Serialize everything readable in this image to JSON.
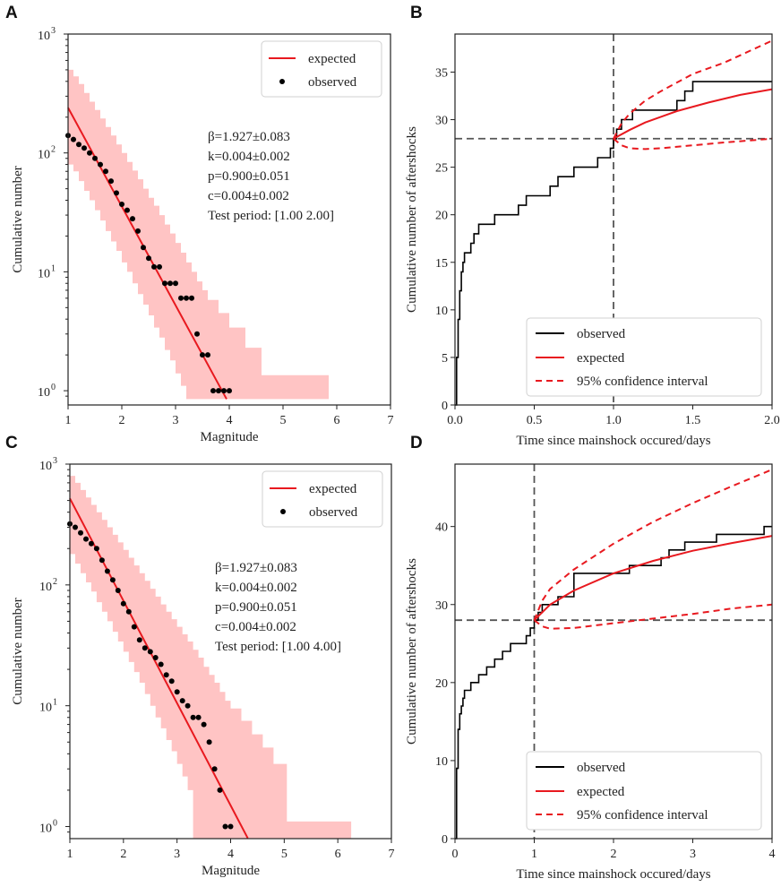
{
  "figure": {
    "panels": [
      "A",
      "B",
      "C",
      "D"
    ]
  },
  "chart_data": [
    {
      "id": "A",
      "type": "scatter",
      "yscale": "log",
      "xlabel": "Magnitude",
      "ylabel": "Cumulative number",
      "xlim": [
        1,
        7
      ],
      "ylim_log10": [
        -0.12,
        3
      ],
      "xticks": [
        "1",
        "2",
        "3",
        "4",
        "5",
        "6",
        "7"
      ],
      "yticks": [
        "10",
        "10",
        "10",
        "10"
      ],
      "ytick_exponents": [
        "0",
        "1",
        "2",
        "3"
      ],
      "legend": [
        "expected",
        "observed"
      ],
      "legend_position": "top-right",
      "expected_line": {
        "x": [
          1.0,
          3.95
        ],
        "y": [
          240,
          0.85
        ]
      },
      "confidence_band": {
        "steps": [
          [
            1.0,
            80,
            500
          ],
          [
            1.1,
            70,
            440
          ],
          [
            1.2,
            58,
            380
          ],
          [
            1.3,
            48,
            320
          ],
          [
            1.4,
            40,
            270
          ],
          [
            1.5,
            33,
            230
          ],
          [
            1.6,
            27,
            195
          ],
          [
            1.7,
            22,
            165
          ],
          [
            1.8,
            18,
            140
          ],
          [
            1.9,
            15,
            118
          ],
          [
            2.0,
            12,
            100
          ],
          [
            2.1,
            10,
            84
          ],
          [
            2.2,
            8,
            71
          ],
          [
            2.3,
            6.5,
            60
          ],
          [
            2.4,
            5.3,
            50
          ],
          [
            2.5,
            4.3,
            42
          ],
          [
            2.6,
            3.4,
            36
          ],
          [
            2.7,
            2.8,
            30
          ],
          [
            2.8,
            2.2,
            25
          ],
          [
            2.9,
            1.8,
            21
          ],
          [
            3.0,
            1.4,
            17.5
          ],
          [
            3.1,
            1.1,
            14.5
          ],
          [
            3.2,
            0.85,
            12
          ],
          [
            3.3,
            0.85,
            10
          ],
          [
            3.4,
            0.85,
            8.3
          ],
          [
            3.5,
            0.85,
            7
          ],
          [
            3.6,
            0.85,
            5.8
          ],
          [
            3.8,
            0.85,
            4.5
          ],
          [
            4.0,
            0.85,
            3.4
          ],
          [
            4.3,
            0.85,
            2.3
          ],
          [
            4.6,
            0.85,
            1.35
          ],
          [
            5.85,
            0.85,
            1.35
          ]
        ]
      },
      "observed": {
        "x": [
          1.0,
          1.1,
          1.2,
          1.3,
          1.4,
          1.5,
          1.6,
          1.7,
          1.8,
          1.9,
          2.0,
          2.1,
          2.2,
          2.3,
          2.4,
          2.5,
          2.6,
          2.7,
          2.8,
          2.9,
          3.0,
          3.1,
          3.2,
          3.3,
          3.4,
          3.5,
          3.6,
          3.7,
          3.8,
          3.9,
          4.0
        ],
        "y": [
          140,
          130,
          118,
          110,
          100,
          90,
          80,
          70,
          58,
          46,
          37,
          33,
          28,
          22,
          16,
          13,
          11,
          11,
          8,
          8,
          8,
          6,
          6,
          6,
          3,
          2,
          2,
          1,
          1,
          1,
          1
        ]
      },
      "annotations": [
        "β=1.927±0.083",
        "k=0.004±0.002",
        "p=0.900±0.051",
        "c=0.004±0.002",
        "Test period: [1.00 2.00]"
      ]
    },
    {
      "id": "B",
      "type": "line",
      "xlabel": "Time since mainshock occured/days",
      "ylabel": "Cumulative number of aftershocks",
      "xlim": [
        0,
        2
      ],
      "ylim": [
        0,
        39
      ],
      "xticks": [
        "0.0",
        "0.5",
        "1.0",
        "1.5",
        "2.0"
      ],
      "yticks": [
        "0",
        "5",
        "10",
        "15",
        "20",
        "25",
        "30",
        "35"
      ],
      "legend": [
        "observed",
        "expected",
        "95% confidence interval"
      ],
      "legend_position": "lower-right",
      "reference_lines": {
        "x": 1.0,
        "y": 28
      },
      "observed": {
        "x": [
          0,
          0.01,
          0.02,
          0.03,
          0.04,
          0.05,
          0.06,
          0.08,
          0.1,
          0.12,
          0.15,
          0.2,
          0.25,
          0.3,
          0.35,
          0.4,
          0.45,
          0.5,
          0.55,
          0.6,
          0.65,
          0.75,
          0.8,
          0.85,
          0.9,
          0.95,
          0.98,
          1.0,
          1.02,
          1.05,
          1.08,
          1.12,
          1.2,
          1.3,
          1.4,
          1.45,
          1.5,
          2.0
        ],
        "y": [
          0,
          5,
          9,
          12,
          14,
          15,
          16,
          16,
          17,
          18,
          19,
          19,
          20,
          20,
          20,
          21,
          22,
          22,
          22,
          23,
          24,
          25,
          25,
          25,
          26,
          26,
          27,
          28,
          29,
          30,
          30,
          31,
          31,
          31,
          32,
          33,
          34,
          34
        ]
      },
      "expected": {
        "x": [
          1.0,
          1.1,
          1.2,
          1.4,
          1.6,
          1.8,
          2.0
        ],
        "y": [
          28.0,
          28.9,
          29.7,
          30.9,
          31.8,
          32.6,
          33.2
        ]
      },
      "ci_upper": {
        "x": [
          1.0,
          1.05,
          1.1,
          1.2,
          1.3,
          1.5,
          1.7,
          2.0
        ],
        "y": [
          28.0,
          29.6,
          30.6,
          32.0,
          33.0,
          34.8,
          36.0,
          38.3
        ]
      },
      "ci_lower": {
        "x": [
          1.0,
          1.05,
          1.1,
          1.2,
          1.3,
          1.5,
          1.7,
          2.0
        ],
        "y": [
          28.0,
          27.3,
          27.0,
          26.9,
          27.0,
          27.3,
          27.6,
          28.0
        ]
      }
    },
    {
      "id": "C",
      "type": "scatter",
      "yscale": "log",
      "xlabel": "Magnitude",
      "ylabel": "Cumulative number",
      "xlim": [
        1,
        7
      ],
      "ylim_log10": [
        -0.1,
        3
      ],
      "xticks": [
        "1",
        "2",
        "3",
        "4",
        "5",
        "6",
        "7"
      ],
      "yticks": [
        "10",
        "10",
        "10",
        "10"
      ],
      "ytick_exponents": [
        "0",
        "1",
        "2",
        "3"
      ],
      "legend": [
        "expected",
        "observed"
      ],
      "legend_position": "top-right",
      "expected_line": {
        "x": [
          1.0,
          4.32
        ],
        "y": [
          520,
          0.8
        ]
      },
      "confidence_band": {
        "steps": [
          [
            1.0,
            180,
            800
          ],
          [
            1.1,
            150,
            700
          ],
          [
            1.2,
            125,
            610
          ],
          [
            1.3,
            105,
            530
          ],
          [
            1.4,
            88,
            460
          ],
          [
            1.5,
            72,
            400
          ],
          [
            1.6,
            60,
            345
          ],
          [
            1.7,
            50,
            300
          ],
          [
            1.8,
            41,
            260
          ],
          [
            1.9,
            34,
            225
          ],
          [
            2.0,
            28,
            195
          ],
          [
            2.1,
            23,
            168
          ],
          [
            2.2,
            19,
            145
          ],
          [
            2.3,
            15.5,
            125
          ],
          [
            2.4,
            12.5,
            108
          ],
          [
            2.5,
            10,
            93
          ],
          [
            2.6,
            8,
            80
          ],
          [
            2.7,
            6.5,
            69
          ],
          [
            2.8,
            5.2,
            60
          ],
          [
            2.9,
            4.2,
            52
          ],
          [
            3.0,
            3.3,
            45
          ],
          [
            3.1,
            2.6,
            39
          ],
          [
            3.2,
            2.0,
            34
          ],
          [
            3.3,
            0.8,
            29
          ],
          [
            3.4,
            0.8,
            25
          ],
          [
            3.5,
            0.8,
            21
          ],
          [
            3.6,
            0.8,
            18
          ],
          [
            3.7,
            0.8,
            15.5
          ],
          [
            3.8,
            0.8,
            13
          ],
          [
            3.9,
            0.8,
            11
          ],
          [
            4.0,
            0.8,
            9.5
          ],
          [
            4.2,
            0.8,
            7.5
          ],
          [
            4.4,
            0.8,
            5.8
          ],
          [
            4.6,
            0.8,
            4.5
          ],
          [
            4.8,
            0.8,
            3.3
          ],
          [
            5.05,
            0.8,
            1.1
          ],
          [
            6.25,
            0.8,
            1.1
          ]
        ]
      },
      "observed": {
        "x": [
          1.0,
          1.1,
          1.2,
          1.3,
          1.4,
          1.5,
          1.6,
          1.7,
          1.8,
          1.9,
          2.0,
          2.1,
          2.2,
          2.3,
          2.4,
          2.5,
          2.6,
          2.7,
          2.8,
          2.9,
          3.0,
          3.1,
          3.2,
          3.3,
          3.4,
          3.5,
          3.6,
          3.7,
          3.8,
          3.9,
          4.0
        ],
        "y": [
          320,
          300,
          270,
          240,
          220,
          200,
          160,
          130,
          110,
          90,
          70,
          60,
          45,
          35,
          30,
          28,
          25,
          22,
          18,
          16,
          13,
          11,
          10,
          8,
          8,
          7,
          5,
          3,
          2,
          1,
          1
        ]
      },
      "annotations": [
        "β=1.927±0.083",
        "k=0.004±0.002",
        "p=0.900±0.051",
        "c=0.004±0.002",
        "Test period: [1.00 4.00]"
      ]
    },
    {
      "id": "D",
      "type": "line",
      "xlabel": "Time since mainshock occured/days",
      "ylabel": "Cumulative number of aftershocks",
      "xlim": [
        0,
        4
      ],
      "ylim": [
        0,
        48
      ],
      "xticks": [
        "0",
        "1",
        "2",
        "3",
        "4"
      ],
      "yticks": [
        "0",
        "10",
        "20",
        "30",
        "40"
      ],
      "legend": [
        "observed",
        "expected",
        "95% confidence interval"
      ],
      "legend_position": "lower-right",
      "reference_lines": {
        "x": 1.0,
        "y": 28
      },
      "observed": {
        "x": [
          0,
          0.02,
          0.04,
          0.06,
          0.08,
          0.1,
          0.12,
          0.15,
          0.2,
          0.25,
          0.3,
          0.4,
          0.5,
          0.6,
          0.7,
          0.8,
          0.9,
          0.95,
          1.0,
          1.05,
          1.1,
          1.2,
          1.3,
          1.5,
          2.0,
          2.2,
          2.3,
          2.5,
          2.6,
          2.7,
          2.9,
          3.0,
          3.1,
          3.3,
          3.6,
          3.9,
          4.0
        ],
        "y": [
          0,
          9,
          14,
          16,
          17,
          18,
          19,
          19,
          20,
          20,
          21,
          22,
          23,
          24,
          25,
          25,
          26,
          27,
          28,
          29,
          30,
          30,
          31,
          34,
          34,
          35,
          35,
          35,
          36,
          37,
          38,
          38,
          38,
          39,
          39,
          40,
          40
        ]
      },
      "expected": {
        "x": [
          1.0,
          1.2,
          1.5,
          2.0,
          2.5,
          3.0,
          3.5,
          4.0
        ],
        "y": [
          28.0,
          30.0,
          31.8,
          34.0,
          35.6,
          36.9,
          37.9,
          38.8
        ]
      },
      "ci_upper": {
        "x": [
          1.0,
          1.1,
          1.2,
          1.5,
          2.0,
          2.5,
          3.0,
          3.5,
          4.0
        ],
        "y": [
          28.0,
          30.5,
          32.0,
          34.5,
          37.8,
          40.6,
          43.0,
          45.2,
          47.3
        ]
      },
      "ci_lower": {
        "x": [
          1.0,
          1.1,
          1.2,
          1.5,
          2.0,
          2.5,
          3.0,
          3.5,
          4.0
        ],
        "y": [
          28.0,
          27.2,
          26.9,
          27.0,
          27.6,
          28.2,
          28.8,
          29.5,
          30.0
        ]
      }
    }
  ]
}
